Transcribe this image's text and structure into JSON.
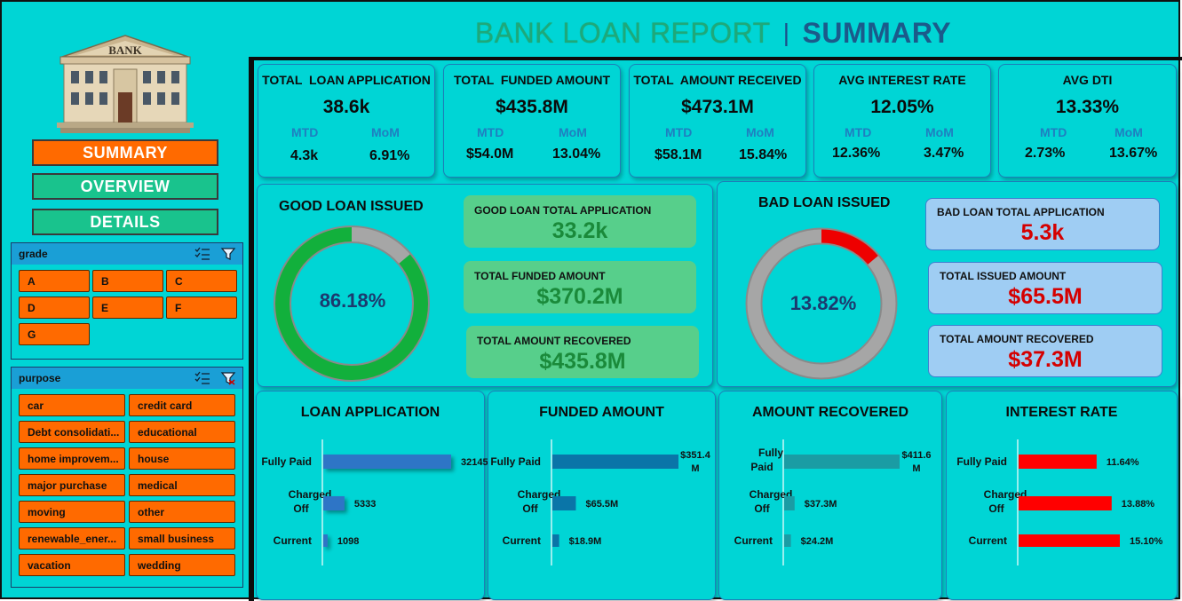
{
  "header": {
    "title_part1": "BANK LOAN REPORT",
    "separator": "|",
    "title_part2": "SUMMARY"
  },
  "logo": {
    "text": "BANK"
  },
  "nav": {
    "summary": "SUMMARY",
    "overview": "OVERVIEW",
    "details": "DETAILS"
  },
  "grade_slicer": {
    "title": "grade",
    "items": [
      "A",
      "B",
      "C",
      "D",
      "E",
      "F",
      "G"
    ]
  },
  "purpose_slicer": {
    "title": "purpose",
    "items": [
      "car",
      "credit card",
      "Debt consolidati...",
      "educational",
      "home improvem...",
      "house",
      "major purchase",
      "medical",
      "moving",
      "other",
      "renewable_ener...",
      "small business",
      "vacation",
      "wedding"
    ]
  },
  "kpis": [
    {
      "title": "TOTAL  LOAN APPLICATION",
      "value": "38.6k",
      "mtd_label": "MTD",
      "mom_label": "MoM",
      "mtd": "4.3k",
      "mom": "6.91%"
    },
    {
      "title": "TOTAL  FUNDED AMOUNT",
      "value": "$435.8M",
      "mtd_label": "MTD",
      "mom_label": "MoM",
      "mtd": "$54.0M",
      "mom": "13.04%"
    },
    {
      "title": "TOTAL  AMOUNT RECEIVED",
      "value": "$473.1M",
      "mtd_label": "MTD",
      "mom_label": "MoM",
      "mtd": "$58.1M",
      "mom": "15.84%"
    },
    {
      "title": "AVG INTEREST RATE",
      "value": "12.05%",
      "mtd_label": "MTD",
      "mom_label": "MoM",
      "mtd": "12.36%",
      "mom": "3.47%"
    },
    {
      "title": "AVG DTI",
      "value": "13.33%",
      "mtd_label": "MTD",
      "mom_label": "MoM",
      "mtd": "2.73%",
      "mom": "13.67%"
    }
  ],
  "good_loan": {
    "title": "GOOD LOAN ISSUED",
    "percent_label": "86.18%",
    "percent": 0.8618,
    "ring_color": "#12b03c",
    "rest_color": "#a6a6a6",
    "cards": [
      {
        "label": "GOOD LOAN TOTAL APPLICATION",
        "value": "33.2k"
      },
      {
        "label": "TOTAL FUNDED AMOUNT",
        "value": "$370.2M"
      },
      {
        "label": "TOTAL AMOUNT RECOVERED",
        "value": "$435.8M"
      }
    ]
  },
  "bad_loan": {
    "title": "BAD LOAN ISSUED",
    "percent_label": "13.82%",
    "percent": 0.1382,
    "ring_color": "#ee0000",
    "rest_color": "#a6a6a6",
    "cards": [
      {
        "label": "BAD LOAN TOTAL APPLICATION",
        "value": "5.3k"
      },
      {
        "label": "TOTAL ISSUED AMOUNT",
        "value": "$65.5M"
      },
      {
        "label": "TOTAL AMOUNT RECOVERED",
        "value": "$37.3M"
      }
    ]
  },
  "chart_data": [
    {
      "type": "bar",
      "orientation": "horizontal",
      "title": "LOAN APPLICATION",
      "categories": [
        "Fully Paid",
        "Charged Off",
        "Current"
      ],
      "values": [
        32145,
        5333,
        1098
      ],
      "data_labels": [
        "32145",
        "5333",
        "1098"
      ],
      "color": "#2e75c6",
      "xlim": [
        0,
        32145
      ]
    },
    {
      "type": "bar",
      "orientation": "horizontal",
      "title": "FUNDED AMOUNT",
      "categories": [
        "Fully Paid",
        "Charged Off",
        "Current"
      ],
      "values": [
        351.4,
        65.5,
        18.9
      ],
      "data_labels": [
        "$351.4 M",
        "$65.5M",
        "$18.9M"
      ],
      "color": "#0a75a8",
      "xlim": [
        0,
        351.4
      ]
    },
    {
      "type": "bar",
      "orientation": "horizontal",
      "title": "AMOUNT RECOVERED",
      "categories": [
        "Fully Paid",
        "Charged Off",
        "Current"
      ],
      "values": [
        411.6,
        37.3,
        24.2
      ],
      "data_labels": [
        "$411.6 M",
        "$37.3M",
        "$24.2M"
      ],
      "color": "#1a9ca4",
      "xlim": [
        0,
        411.6
      ]
    },
    {
      "type": "bar",
      "orientation": "horizontal",
      "title": "INTEREST RATE",
      "categories": [
        "Fully Paid",
        "Charged Off",
        "Current"
      ],
      "values": [
        11.64,
        13.88,
        15.1
      ],
      "data_labels": [
        "11.64%",
        "13.88%",
        "15.10%"
      ],
      "color": "#ff0000",
      "xlim": [
        0,
        15.1
      ]
    }
  ]
}
